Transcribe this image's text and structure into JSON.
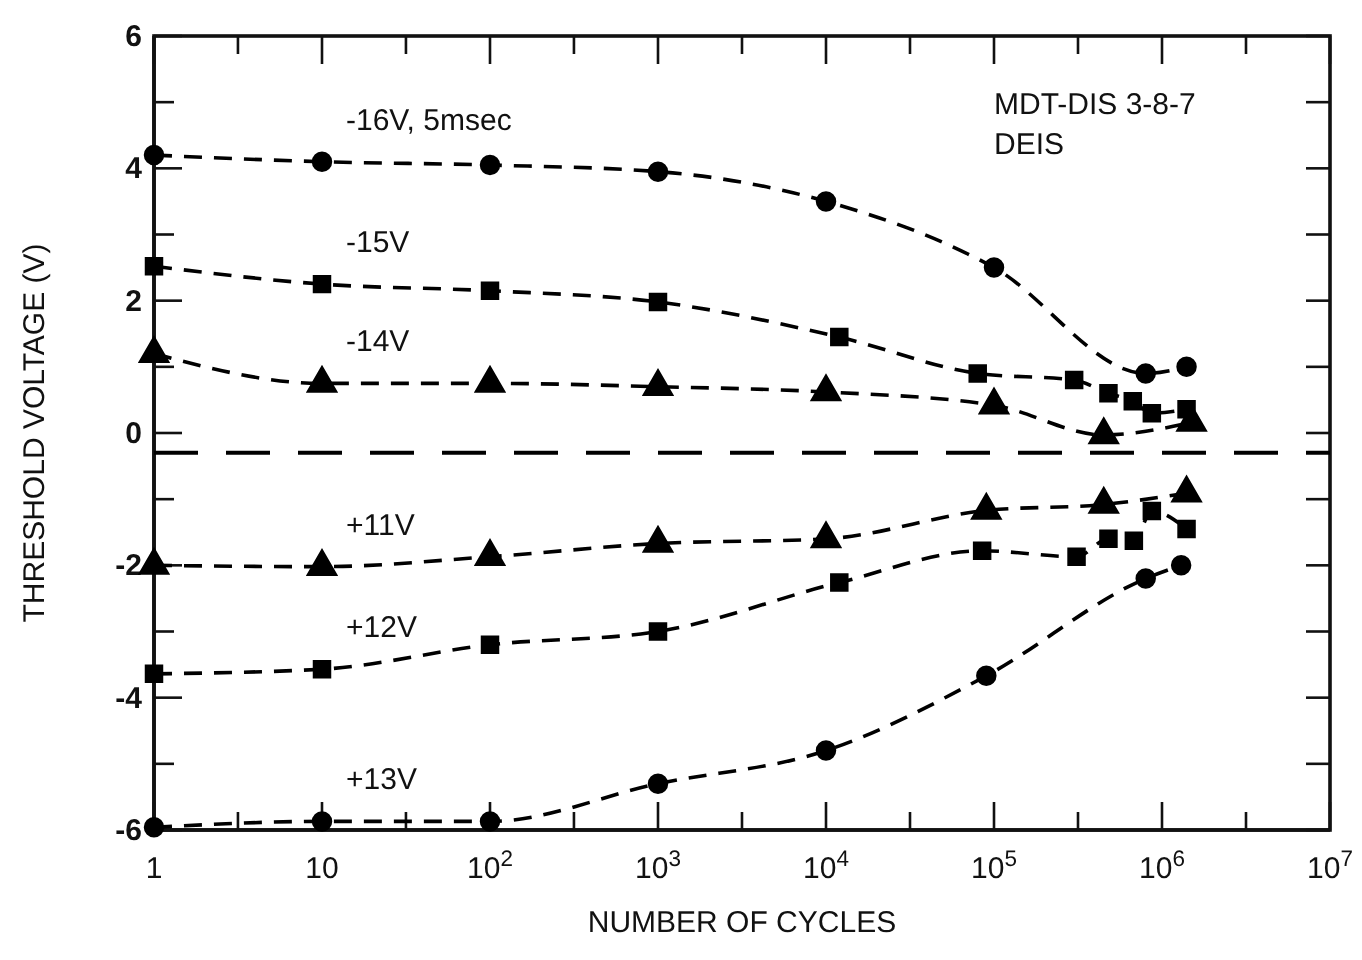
{
  "chart_data": {
    "type": "line",
    "xlabel": "NUMBER OF CYCLES",
    "ylabel": "THRESHOLD VOLTAGE (V)",
    "log": "x",
    "xlim": [
      1,
      10000000
    ],
    "ylim": [
      -6,
      6
    ],
    "xticks": [
      {
        "value": 1,
        "label": "1"
      },
      {
        "value": 3.16,
        "label": null
      },
      {
        "value": 10,
        "label": "10"
      },
      {
        "value": 31.6,
        "label": null
      },
      {
        "value": 100,
        "label": "10$^{2}$"
      },
      {
        "value": 316,
        "label": null
      },
      {
        "value": 1000,
        "label": "10$^{3}$"
      },
      {
        "value": 3162,
        "label": null
      },
      {
        "value": 10000,
        "label": "10$^{4}$"
      },
      {
        "value": 31623,
        "label": null
      },
      {
        "value": 100000,
        "label": "10$^{5}$"
      },
      {
        "value": 316228,
        "label": null
      },
      {
        "value": 1000000,
        "label": "10$^{6}$"
      },
      {
        "value": 3162278,
        "label": null
      },
      {
        "value": 10000000,
        "label": "10$^{7}$"
      }
    ],
    "yticks": [
      -6,
      {
        "value": -5,
        "label": null
      },
      -4,
      {
        "value": -3,
        "label": null
      },
      -2,
      {
        "value": -1,
        "label": null
      },
      0,
      {
        "value": 1,
        "label": null
      },
      2,
      {
        "value": 3,
        "label": null
      },
      4,
      {
        "value": 5,
        "label": null
      },
      6
    ],
    "grid": false,
    "line_style": "dashed",
    "annotations": [
      "MDT-DIS 3-8-7",
      "DEIS"
    ],
    "ref_lines": [
      {
        "axis": "y",
        "value": -0.3,
        "color": "#000000",
        "line_style": "dashed"
      }
    ],
    "series": [
      {
        "name": "-16V, 5msec",
        "color": "#000000",
        "marker": "circle",
        "x": [
          1,
          10,
          100,
          1000,
          10000,
          100000,
          800000,
          1400000
        ],
        "values": [
          4.2,
          4.1,
          4.05,
          3.95,
          3.5,
          2.5,
          0.9,
          1.0
        ]
      },
      {
        "name": "-15V",
        "color": "#000000",
        "marker": "square",
        "x": [
          1,
          10,
          100,
          1000,
          12000,
          80000,
          300000,
          480000,
          670000,
          870000,
          1400000
        ],
        "values": [
          2.52,
          2.25,
          2.15,
          1.98,
          1.45,
          0.9,
          0.8,
          0.6,
          0.48,
          0.3,
          0.36
        ]
      },
      {
        "name": "-14V",
        "color": "#000000",
        "marker": "triangle",
        "x": [
          1,
          10,
          100,
          1000,
          10000,
          100000,
          450000,
          1500000
        ],
        "values": [
          1.2,
          0.75,
          0.75,
          0.7,
          0.62,
          0.42,
          -0.03,
          0.16
        ]
      },
      {
        "name": "+11V",
        "color": "#000000",
        "marker": "triangle",
        "x": [
          1,
          10,
          100,
          1000,
          10000,
          90000,
          450000,
          1400000
        ],
        "values": [
          -2.0,
          -2.02,
          -1.87,
          -1.67,
          -1.6,
          -1.17,
          -1.08,
          -0.91
        ]
      },
      {
        "name": "+12V",
        "color": "#000000",
        "marker": "square",
        "x": [
          1,
          10,
          100,
          1000,
          12000,
          85000,
          310000,
          480000,
          680000,
          870000,
          1400000
        ],
        "values": [
          -3.64,
          -3.57,
          -3.2,
          -3.0,
          -2.26,
          -1.78,
          -1.87,
          -1.6,
          -1.63,
          -1.18,
          -1.45
        ]
      },
      {
        "name": "+13V",
        "color": "#000000",
        "marker": "circle",
        "x": [
          1,
          10,
          100,
          1000,
          10000,
          90000,
          800000,
          1300000
        ],
        "values": [
          -5.96,
          -5.87,
          -5.87,
          -5.3,
          -4.8,
          -3.67,
          -2.2,
          -2.0
        ]
      }
    ]
  }
}
